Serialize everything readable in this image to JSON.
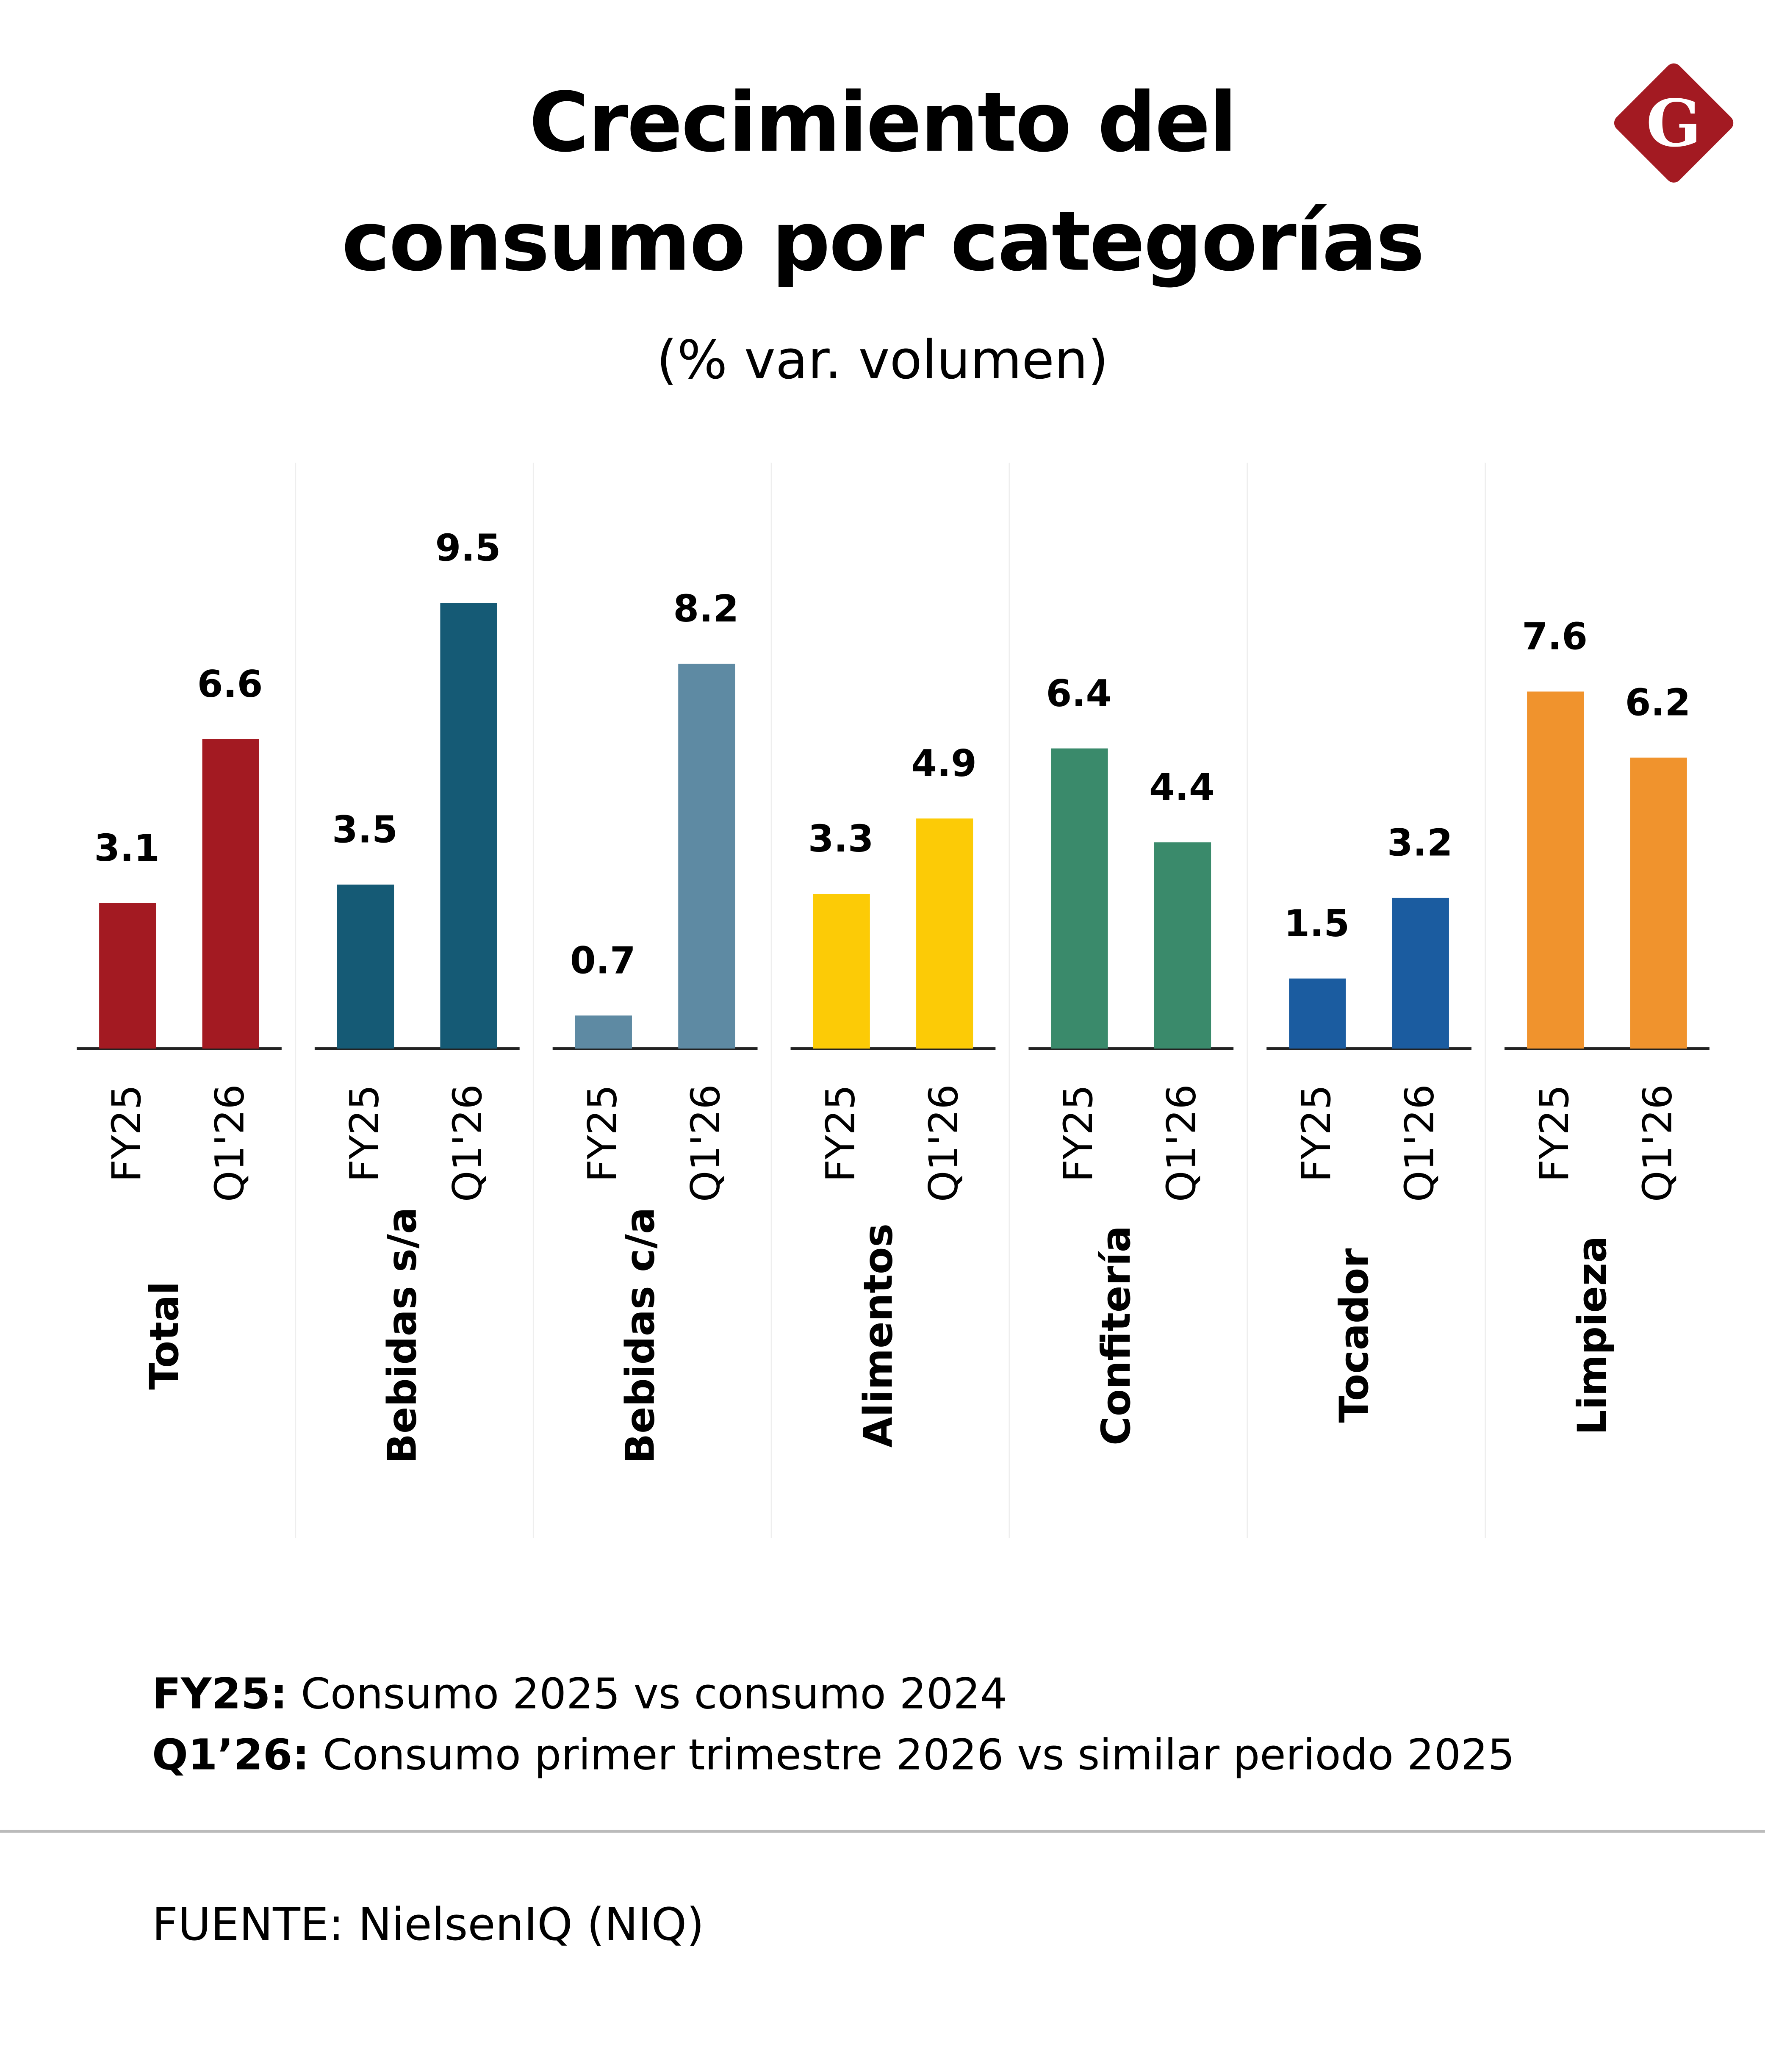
{
  "title_line1": "Crecimiento del",
  "title_line2": "consumo por categorías",
  "subtitle": "(% var. volumen)",
  "logo_letter": "G",
  "colors": {
    "logo": "#A31A22"
  },
  "chart_data": {
    "type": "bar",
    "title": "Crecimiento del consumo por categorías",
    "subtitle": "(% var. volumen)",
    "series_labels": [
      "FY25",
      "Q1'26"
    ],
    "groups": [
      {
        "category": "Total",
        "color": "#A31A22",
        "values": [
          3.1,
          6.6
        ],
        "labels": [
          "3.1",
          "6.6"
        ]
      },
      {
        "category": "Bebidas s/a",
        "color": "#155A75",
        "values": [
          3.5,
          9.5
        ],
        "labels": [
          "3.5",
          "9.5"
        ]
      },
      {
        "category": "Bebidas c/a",
        "color": "#5E8AA3",
        "values": [
          0.7,
          8.2
        ],
        "labels": [
          "0.7",
          "8.2"
        ]
      },
      {
        "category": "Alimentos",
        "color": "#FCCB06",
        "values": [
          3.3,
          4.9
        ],
        "labels": [
          "3.3",
          "4.9"
        ]
      },
      {
        "category": "Confitería",
        "color": "#3A8A6B",
        "values": [
          6.4,
          4.4
        ],
        "labels": [
          "6.4",
          "4.4"
        ]
      },
      {
        "category": "Tocador",
        "color": "#1B5CA0",
        "values": [
          1.5,
          3.2
        ],
        "labels": [
          "1.5",
          "3.2"
        ]
      },
      {
        "category": "Limpieza",
        "color": "#F0932D",
        "values": [
          7.6,
          6.2
        ],
        "labels": [
          "7.6",
          "6.2"
        ]
      }
    ],
    "ylim": [
      0,
      9.5
    ],
    "grid": false
  },
  "notes": [
    {
      "key": "FY25:",
      "text": " Consumo 2025 vs consumo 2024"
    },
    {
      "key": "Q1’26:",
      "text": " Consumo primer trimestre 2026 vs similar periodo 2025"
    }
  ],
  "source": "FUENTE: NielsenIQ (NIQ)"
}
